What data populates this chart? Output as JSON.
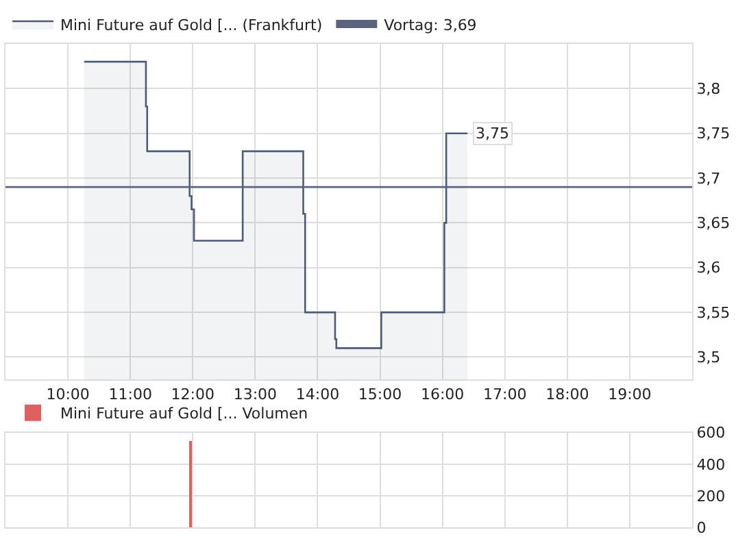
{
  "chart_data": [
    {
      "type": "area",
      "x": [
        10.26,
        11.25,
        11.25,
        11.27,
        11.27,
        11.95,
        11.95,
        11.98,
        11.98,
        12.02,
        12.02,
        12.8,
        12.8,
        13.77,
        13.77,
        13.8,
        13.8,
        14.28,
        14.28,
        14.3,
        14.3,
        15.02,
        15.02,
        16.03,
        16.03,
        16.06,
        16.06,
        16.4
      ],
      "series": [
        {
          "name": "Mini Future auf Gold [... (Frankfurt)",
          "color": "#4d5a78",
          "values": [
            3.83,
            3.83,
            3.78,
            3.78,
            3.73,
            3.73,
            3.68,
            3.68,
            3.665,
            3.665,
            3.63,
            3.63,
            3.73,
            3.73,
            3.66,
            3.66,
            3.55,
            3.55,
            3.52,
            3.52,
            3.51,
            3.51,
            3.55,
            3.55,
            3.65,
            3.65,
            3.75,
            3.75
          ]
        }
      ],
      "xlim": [
        9,
        20
      ],
      "xticks": [
        {
          "value": 10,
          "label": "10:00"
        },
        {
          "value": 11,
          "label": "11:00"
        },
        {
          "value": 12,
          "label": "12:00"
        },
        {
          "value": 13,
          "label": "13:00"
        },
        {
          "value": 14,
          "label": "14:00"
        },
        {
          "value": 15,
          "label": "15:00"
        },
        {
          "value": 16,
          "label": "16:00"
        },
        {
          "value": 17,
          "label": "17:00"
        },
        {
          "value": 18,
          "label": "18:00"
        },
        {
          "value": 19,
          "label": "19:00"
        }
      ],
      "ylim": [
        3.475,
        3.85
      ],
      "yticks": [
        {
          "value": 3.5,
          "label": "3,5"
        },
        {
          "value": 3.55,
          "label": "3,55"
        },
        {
          "value": 3.6,
          "label": "3,6"
        },
        {
          "value": 3.65,
          "label": "3,65"
        },
        {
          "value": 3.7,
          "label": "3,7"
        },
        {
          "value": 3.75,
          "label": "3,75"
        },
        {
          "value": 3.8,
          "label": "3,8"
        }
      ],
      "ref_lines": [
        {
          "axis": "y",
          "value": 3.69,
          "label": "Vortag: 3,69",
          "color": "#5a6380"
        }
      ],
      "annotations": [
        {
          "text": "3,75",
          "x": 16.4,
          "y": 3.75
        }
      ],
      "grid": true,
      "legend": "top left"
    },
    {
      "type": "bar",
      "x": [
        11.97
      ],
      "series": [
        {
          "name": "Mini Future auf Gold [... Volumen",
          "color": "#e06060",
          "values": [
            550
          ]
        }
      ],
      "xlim": [
        9,
        20
      ],
      "ylim": [
        0,
        600
      ],
      "yticks": [
        0,
        200,
        400,
        600
      ],
      "tick_labels": "y",
      "grid": true,
      "legend": "top left"
    }
  ]
}
